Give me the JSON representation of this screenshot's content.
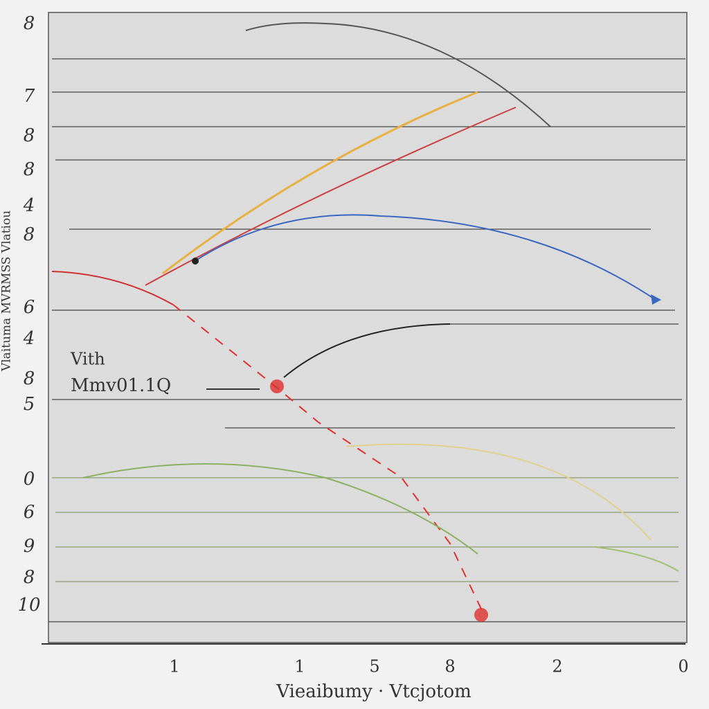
{
  "axis": {
    "y_labels": [
      "8",
      "7",
      "8",
      "8",
      "4",
      "8",
      "6",
      "4",
      "8",
      "5",
      "0",
      "6",
      "9",
      "8",
      "10"
    ],
    "x_labels": [
      "1",
      "1",
      "5",
      "8",
      "2",
      "0"
    ],
    "x_title": "Vieaibumy · Vtcjotom",
    "y_title": "Vlaituma MVRMSS Vlatiou"
  },
  "annotation": {
    "line1": "Vith",
    "line2": "Mmv01.1Q"
  }
}
